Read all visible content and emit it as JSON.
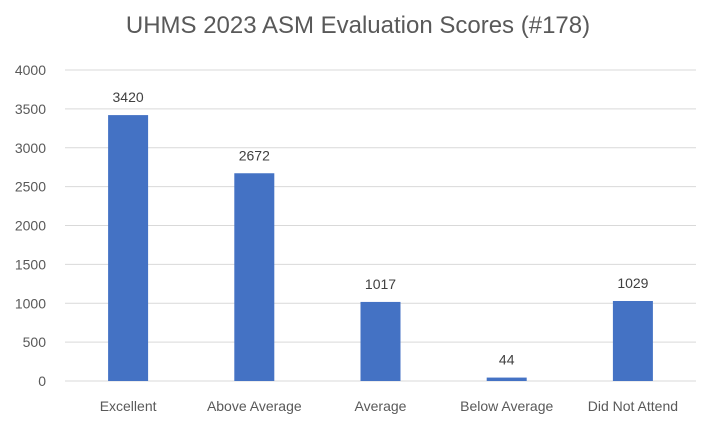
{
  "chart_data": {
    "type": "bar",
    "title": "UHMS 2023 ASM Evaluation Scores (#178)",
    "xlabel": "",
    "ylabel": "",
    "categories": [
      "Excellent",
      "Above Average",
      "Average",
      "Below Average",
      "Did Not Attend"
    ],
    "values": [
      3420,
      2672,
      1017,
      44,
      1029
    ],
    "data_labels": [
      "3420",
      "2672",
      "1017",
      "44",
      "1029"
    ],
    "ylim": [
      0,
      4000
    ],
    "yticks": [
      "0",
      "500",
      "1000",
      "1500",
      "2000",
      "2500",
      "3000",
      "3500",
      "4000"
    ],
    "grid": true,
    "legend": "none",
    "bar_color": "#4472C4"
  }
}
